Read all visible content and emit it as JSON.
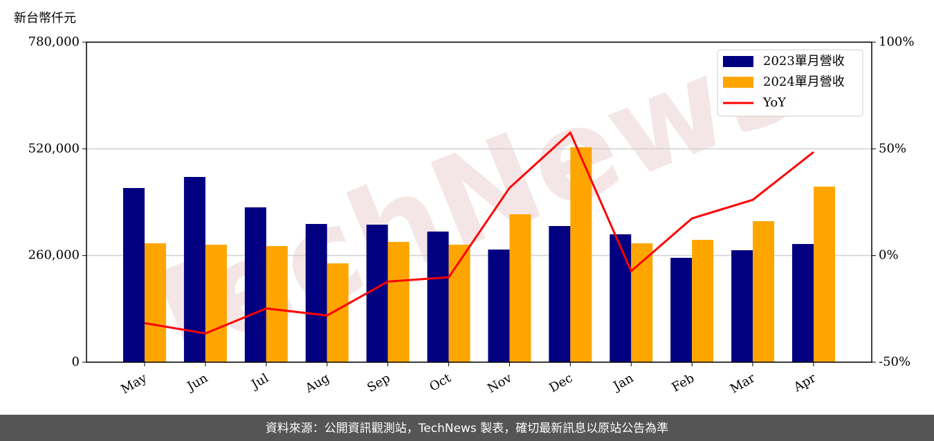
{
  "chart_data": {
    "type": "bar",
    "y_label": "新台幣仟元",
    "watermark": "TechNews",
    "footer": "資料來源：公開資訊觀測站，TechNews 製表，確切最新訊息以原站公告為準",
    "categories": [
      "May",
      "Jun",
      "Jul",
      "Aug",
      "Sep",
      "Oct",
      "Nov",
      "Dec",
      "Jan",
      "Feb",
      "Mar",
      "Apr"
    ],
    "series": [
      {
        "name": "2023單月營收",
        "color": "#000080",
        "values": [
          424500,
          451500,
          377400,
          336900,
          335200,
          318400,
          274600,
          331900,
          311700,
          254400,
          272900,
          288100
        ]
      },
      {
        "name": "2024單月營收",
        "color": "#ffa500",
        "values": [
          289800,
          286400,
          283000,
          240900,
          293100,
          286400,
          360500,
          523900,
          289800,
          298200,
          343700,
          427900
        ]
      },
      {
        "name": "YoY",
        "color": "#ff0000",
        "type": "line",
        "axis": "y2",
        "values": [
          -31.7,
          -36.5,
          -24.8,
          -28.1,
          -12.2,
          -10.2,
          31.7,
          57.6,
          -7.3,
          17.4,
          26.1,
          48.5
        ]
      }
    ],
    "ylim": [
      0,
      780000
    ],
    "yticks": [
      0,
      {
        "value": 260000,
        "label": "260,000"
      },
      {
        "value": 520000,
        "label": "520,000"
      },
      {
        "value": 780000,
        "label": "780,000"
      }
    ],
    "y2lim": [
      -50,
      100
    ],
    "y2ticks": [
      {
        "value": -50,
        "label": "-50%"
      },
      {
        "value": 0,
        "label": "0%"
      },
      {
        "value": 50,
        "label": "50%"
      },
      {
        "value": 100,
        "label": "100%"
      }
    ],
    "grid": true,
    "legend": "upper right"
  }
}
